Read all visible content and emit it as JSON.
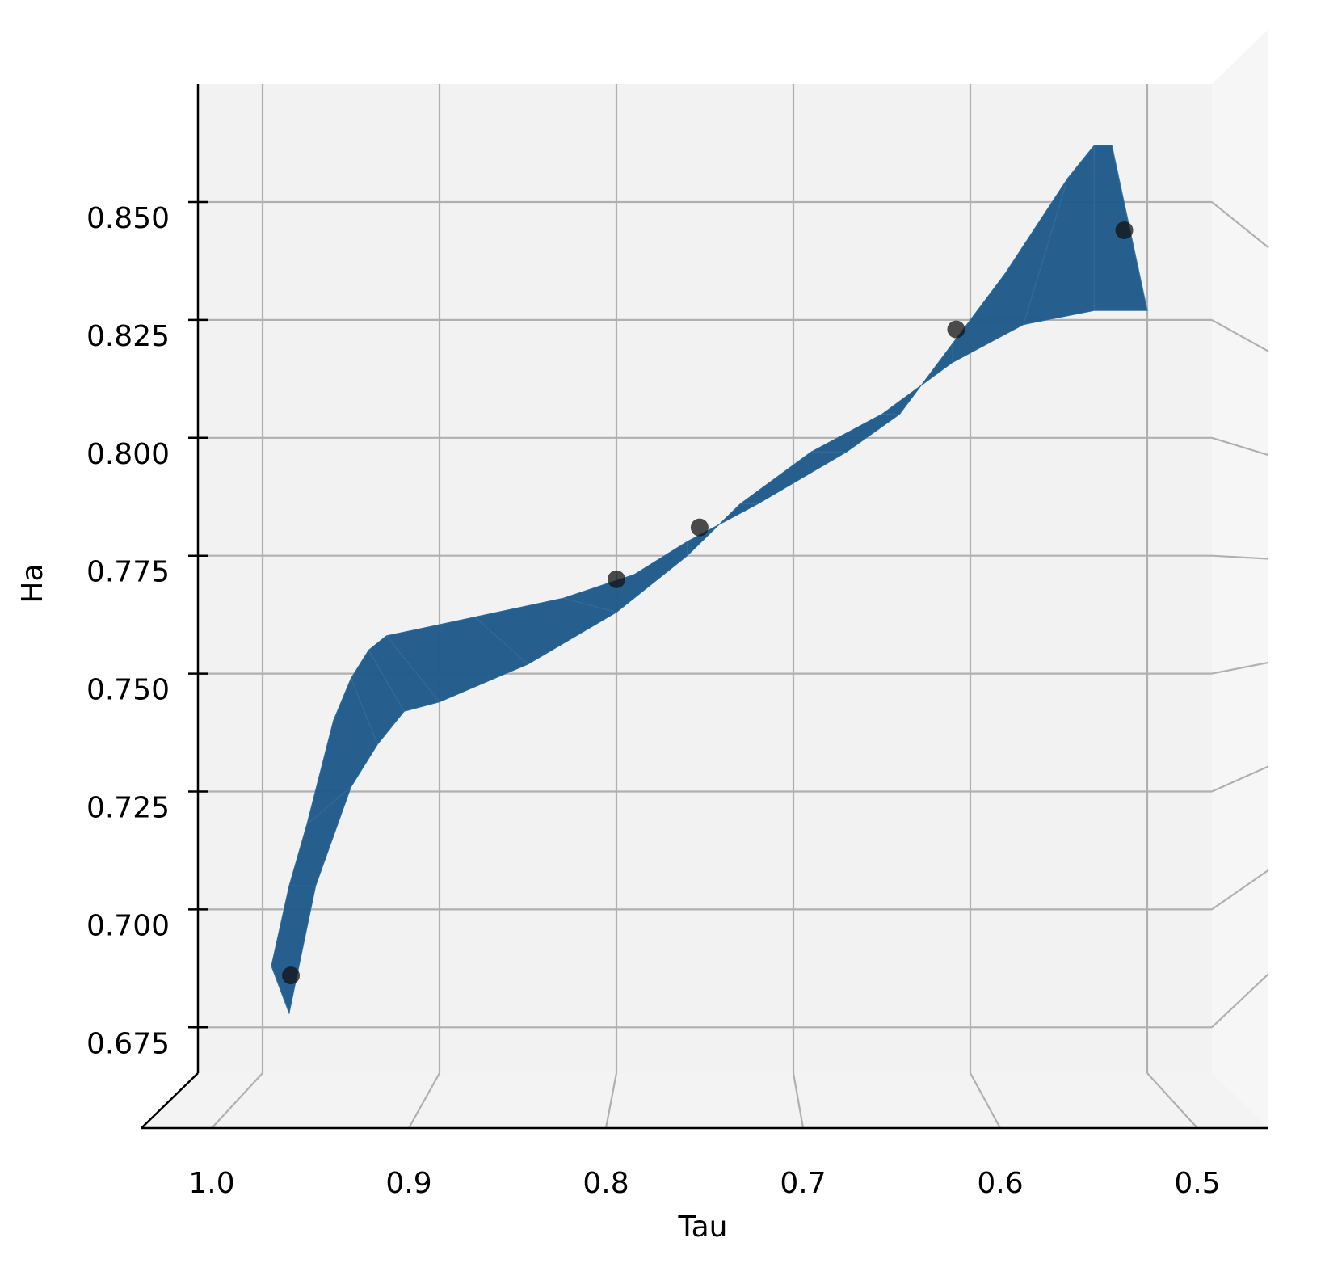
{
  "chart_data": {
    "type": "surface3d",
    "xlabel": "Tau",
    "ylabel": "Ha",
    "x_ticks": [
      "1.0",
      "0.9",
      "0.8",
      "0.7",
      "0.6",
      "0.5"
    ],
    "y_ticks": [
      "0.675",
      "0.700",
      "0.725",
      "0.750",
      "0.775",
      "0.800",
      "0.825",
      "0.850"
    ],
    "x_tick_values": [
      1.0,
      0.9,
      0.8,
      0.7,
      0.6,
      0.5
    ],
    "y_tick_values": [
      0.675,
      0.7,
      0.725,
      0.75,
      0.775,
      0.8,
      0.825,
      0.85
    ],
    "xlim": [
      1.04,
      0.47
    ],
    "ylim": [
      0.65,
      0.875
    ],
    "surface": {
      "color": "#1f5a8a",
      "front_edge": [
        {
          "x": 0.995,
          "y": 0.688
        },
        {
          "x": 0.985,
          "y": 0.705
        },
        {
          "x": 0.975,
          "y": 0.718
        },
        {
          "x": 0.96,
          "y": 0.74
        },
        {
          "x": 0.95,
          "y": 0.749
        },
        {
          "x": 0.94,
          "y": 0.755
        },
        {
          "x": 0.93,
          "y": 0.758
        },
        {
          "x": 0.88,
          "y": 0.762
        },
        {
          "x": 0.83,
          "y": 0.766
        },
        {
          "x": 0.79,
          "y": 0.771
        },
        {
          "x": 0.76,
          "y": 0.778
        },
        {
          "x": 0.72,
          "y": 0.786
        },
        {
          "x": 0.67,
          "y": 0.797
        },
        {
          "x": 0.64,
          "y": 0.805
        },
        {
          "x": 0.61,
          "y": 0.82
        },
        {
          "x": 0.58,
          "y": 0.835
        },
        {
          "x": 0.545,
          "y": 0.855
        },
        {
          "x": 0.53,
          "y": 0.862
        },
        {
          "x": 0.52,
          "y": 0.862
        }
      ],
      "back_edge": [
        {
          "x": 0.5,
          "y": 0.827
        },
        {
          "x": 0.53,
          "y": 0.827
        },
        {
          "x": 0.57,
          "y": 0.824
        },
        {
          "x": 0.61,
          "y": 0.816
        },
        {
          "x": 0.65,
          "y": 0.805
        },
        {
          "x": 0.69,
          "y": 0.797
        },
        {
          "x": 0.73,
          "y": 0.786
        },
        {
          "x": 0.76,
          "y": 0.775
        },
        {
          "x": 0.8,
          "y": 0.763
        },
        {
          "x": 0.85,
          "y": 0.752
        },
        {
          "x": 0.9,
          "y": 0.744
        },
        {
          "x": 0.92,
          "y": 0.742
        },
        {
          "x": 0.935,
          "y": 0.735
        },
        {
          "x": 0.95,
          "y": 0.726
        },
        {
          "x": 0.97,
          "y": 0.705
        },
        {
          "x": 0.985,
          "y": 0.678
        }
      ]
    },
    "scatter": [
      {
        "x": 0.984,
        "y": 0.686
      },
      {
        "x": 0.8,
        "y": 0.77
      },
      {
        "x": 0.753,
        "y": 0.781
      },
      {
        "x": 0.608,
        "y": 0.823
      },
      {
        "x": 0.513,
        "y": 0.844
      }
    ]
  }
}
